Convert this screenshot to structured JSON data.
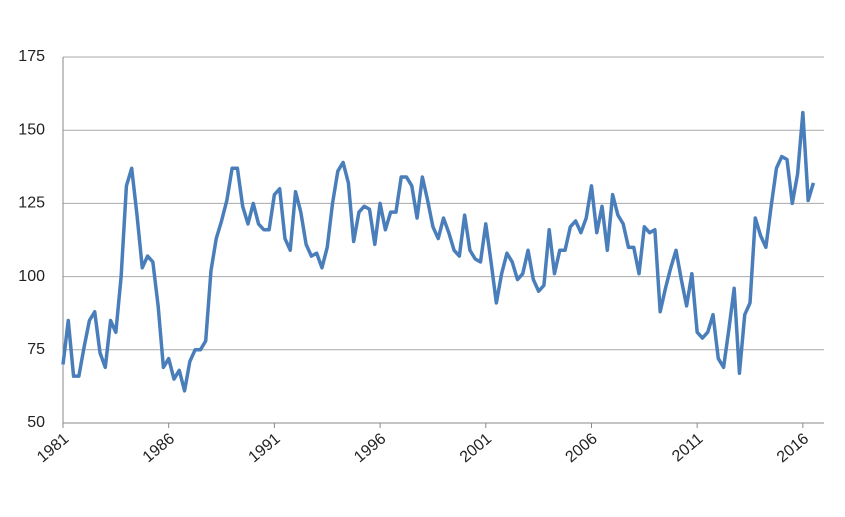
{
  "chart_data": {
    "type": "line",
    "x": [
      1981,
      1981.25,
      1981.5,
      1981.75,
      1982,
      1982.25,
      1982.5,
      1982.75,
      1983,
      1983.25,
      1983.5,
      1983.75,
      1984,
      1984.25,
      1984.5,
      1984.75,
      1985,
      1985.25,
      1985.5,
      1985.75,
      1986,
      1986.25,
      1986.5,
      1986.75,
      1987,
      1987.25,
      1987.5,
      1987.75,
      1988,
      1988.25,
      1988.5,
      1988.75,
      1989,
      1989.25,
      1989.5,
      1989.75,
      1990,
      1990.25,
      1990.5,
      1990.75,
      1991,
      1991.25,
      1991.5,
      1991.75,
      1992,
      1992.25,
      1992.5,
      1992.75,
      1993,
      1993.25,
      1993.5,
      1993.75,
      1994,
      1994.25,
      1994.5,
      1994.75,
      1995,
      1995.25,
      1995.5,
      1995.75,
      1996,
      1996.25,
      1996.5,
      1996.75,
      1997,
      1997.25,
      1997.5,
      1997.75,
      1998,
      1998.25,
      1998.5,
      1998.75,
      1999,
      1999.25,
      1999.5,
      1999.75,
      2000,
      2000.25,
      2000.5,
      2000.75,
      2001,
      2001.25,
      2001.5,
      2001.75,
      2002,
      2002.25,
      2002.5,
      2002.75,
      2003,
      2003.25,
      2003.5,
      2003.75,
      2004,
      2004.25,
      2004.5,
      2004.75,
      2005,
      2005.25,
      2005.5,
      2005.75,
      2006,
      2006.25,
      2006.5,
      2006.75,
      2007,
      2007.25,
      2007.5,
      2007.75,
      2008,
      2008.25,
      2008.5,
      2008.75,
      2009,
      2009.25,
      2009.5,
      2009.75,
      2010,
      2010.25,
      2010.5,
      2010.75,
      2011,
      2011.25,
      2011.5,
      2011.75,
      2012,
      2012.25,
      2012.5,
      2012.75,
      2013,
      2013.25,
      2013.5,
      2013.75,
      2014,
      2014.25,
      2014.5,
      2014.75,
      2015,
      2015.25,
      2015.5,
      2015.75,
      2016,
      2016.25,
      2016.5
    ],
    "series": [
      {
        "color": "#4a7ebb",
        "values": [
          70,
          85,
          66,
          66,
          76,
          85,
          88,
          74,
          69,
          85,
          81,
          100,
          131,
          137,
          121,
          103,
          107,
          105,
          90,
          69,
          72,
          65,
          68,
          61,
          71,
          75,
          75,
          78,
          102,
          113,
          119,
          126,
          137,
          137,
          124,
          118,
          125,
          118,
          116,
          116,
          128,
          130,
          113,
          109,
          129,
          122,
          111,
          107,
          108,
          103,
          110,
          125,
          136,
          139,
          132,
          112,
          122,
          124,
          123,
          111,
          125,
          116,
          122,
          122,
          134,
          134,
          131,
          120,
          134,
          126,
          117,
          113,
          120,
          115,
          109,
          107,
          121,
          109,
          106,
          105,
          118,
          105,
          91,
          101,
          108,
          105,
          99,
          101,
          109,
          99,
          95,
          97,
          116,
          101,
          109,
          109,
          117,
          119,
          115,
          120,
          131,
          115,
          124,
          109,
          128,
          121,
          118,
          110,
          110,
          101,
          117,
          115,
          116,
          88,
          96,
          103,
          109,
          99,
          90,
          101,
          81,
          79,
          81,
          87,
          72,
          69,
          82,
          96,
          67,
          87,
          91,
          120,
          114,
          110,
          124,
          137,
          141,
          140,
          125,
          135,
          156,
          126,
          132
        ]
      }
    ],
    "xlim": [
      1981,
      2017
    ],
    "xticks": [
      1981,
      1986,
      1991,
      1996,
      2001,
      2006,
      2011,
      2016
    ],
    "ylim": [
      50,
      175
    ],
    "yticks": [
      50,
      75,
      100,
      125,
      150,
      175
    ],
    "grid": true
  }
}
